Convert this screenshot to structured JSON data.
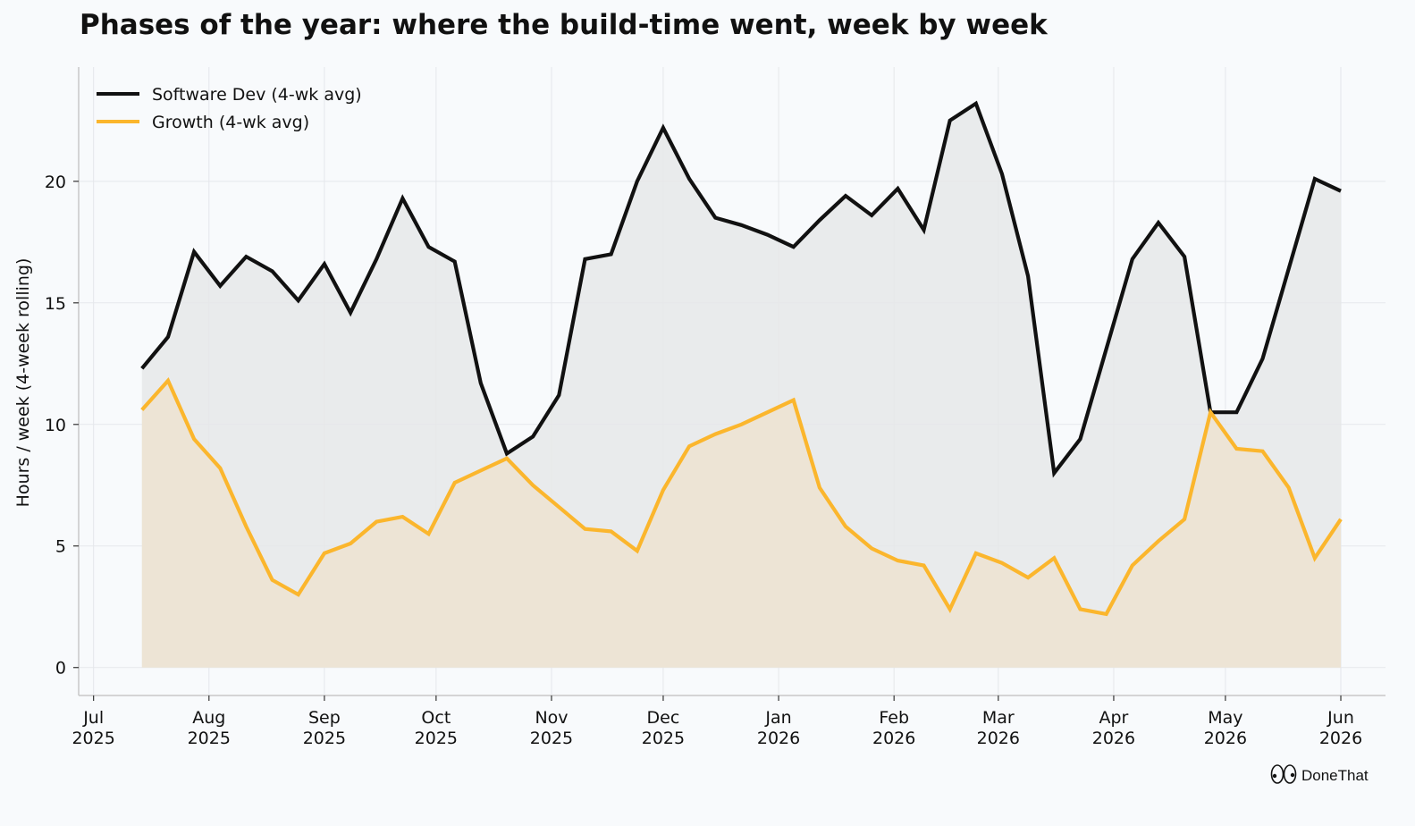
{
  "title": "Phases of the year: where the build-time went, week by week",
  "brand": {
    "name": "DoneThat",
    "icon": "eyes-logo-icon"
  },
  "colors": {
    "background": "#f8fafc",
    "software": "#111111",
    "growth": "#fbb62d",
    "software_fill": "#e6e7e9",
    "growth_fill": "#ede3d3",
    "grid": "#e5e7eb"
  },
  "chart_data": {
    "type": "area",
    "title": "Phases of the year: where the build-time went, week by week",
    "xlabel": "",
    "ylabel": "Hours / week  (4-week rolling)",
    "ylim": [
      -1.15,
      24.7
    ],
    "xlim": [
      "2025-06-27",
      "2026-06-13"
    ],
    "yticks": [
      0,
      5,
      10,
      15,
      20
    ],
    "xticks": [
      {
        "date": "2025-07-01",
        "label": [
          "Jul",
          "2025"
        ]
      },
      {
        "date": "2025-08-01",
        "label": [
          "Aug",
          "2025"
        ]
      },
      {
        "date": "2025-09-01",
        "label": [
          "Sep",
          "2025"
        ]
      },
      {
        "date": "2025-10-01",
        "label": [
          "Oct",
          "2025"
        ]
      },
      {
        "date": "2025-11-01",
        "label": [
          "Nov",
          "2025"
        ]
      },
      {
        "date": "2025-12-01",
        "label": [
          "Dec",
          "2025"
        ]
      },
      {
        "date": "2026-01-01",
        "label": [
          "Jan",
          "2026"
        ]
      },
      {
        "date": "2026-02-01",
        "label": [
          "Feb",
          "2026"
        ]
      },
      {
        "date": "2026-03-01",
        "label": [
          "Mar",
          "2026"
        ]
      },
      {
        "date": "2026-04-01",
        "label": [
          "Apr",
          "2026"
        ]
      },
      {
        "date": "2026-05-01",
        "label": [
          "May",
          "2026"
        ]
      },
      {
        "date": "2026-06-01",
        "label": [
          "Jun",
          "2026"
        ]
      }
    ],
    "grid": true,
    "legend_position": "top-left",
    "x": [
      "2025-07-14",
      "2025-07-21",
      "2025-07-28",
      "2025-08-04",
      "2025-08-11",
      "2025-08-18",
      "2025-08-25",
      "2025-09-01",
      "2025-09-08",
      "2025-09-15",
      "2025-09-22",
      "2025-09-29",
      "2025-10-06",
      "2025-10-13",
      "2025-10-20",
      "2025-10-27",
      "2025-11-03",
      "2025-11-10",
      "2025-11-17",
      "2025-11-24",
      "2025-12-01",
      "2025-12-08",
      "2025-12-15",
      "2025-12-22",
      "2025-12-29",
      "2026-01-05",
      "2026-01-12",
      "2026-01-19",
      "2026-01-26",
      "2026-02-02",
      "2026-02-09",
      "2026-02-16",
      "2026-02-23",
      "2026-03-02",
      "2026-03-09",
      "2026-03-16",
      "2026-03-23",
      "2026-03-30",
      "2026-04-06",
      "2026-04-13",
      "2026-04-20",
      "2026-04-27",
      "2026-05-04",
      "2026-05-11",
      "2026-05-18",
      "2026-05-25",
      "2026-06-01"
    ],
    "series": [
      {
        "name": "Software Dev (4-wk avg)",
        "color": "#111111",
        "values": [
          12.3,
          13.6,
          17.1,
          15.7,
          16.9,
          16.3,
          15.1,
          16.6,
          14.6,
          16.8,
          19.3,
          17.3,
          16.7,
          11.7,
          8.8,
          9.5,
          11.2,
          16.8,
          17.0,
          20.0,
          22.2,
          20.1,
          18.5,
          18.2,
          17.8,
          17.3,
          18.4,
          19.4,
          18.6,
          19.7,
          18.0,
          22.5,
          23.2,
          20.3,
          16.1,
          8.0,
          9.4,
          13.1,
          16.8,
          18.3,
          16.9,
          10.5,
          10.5,
          12.7,
          16.4,
          20.1,
          19.6
        ]
      },
      {
        "name": "Growth (4-wk avg)",
        "color": "#fbb62d",
        "values": [
          10.6,
          11.8,
          9.4,
          8.2,
          5.8,
          3.6,
          3.0,
          4.7,
          5.1,
          6.0,
          6.2,
          5.5,
          7.6,
          8.1,
          8.6,
          7.5,
          6.6,
          5.7,
          5.6,
          4.8,
          7.3,
          9.1,
          9.6,
          10.0,
          10.5,
          11.0,
          7.4,
          5.8,
          4.9,
          4.4,
          4.2,
          2.4,
          4.7,
          4.3,
          3.7,
          4.5,
          2.4,
          2.2,
          4.2,
          5.2,
          6.1,
          10.5,
          9.0,
          8.9,
          7.4,
          4.5,
          6.1
        ]
      }
    ]
  }
}
